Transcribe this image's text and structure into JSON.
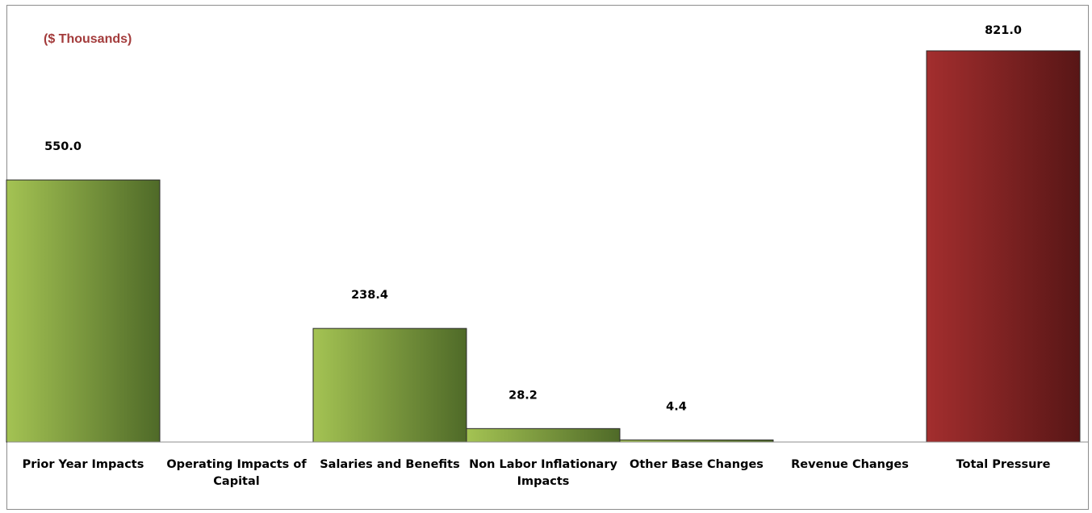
{
  "chart_data": {
    "type": "bar",
    "unit_label": "($ Thousands)",
    "categories": [
      "Prior Year Impacts",
      "Operating Impacts of Capital",
      "Salaries and Benefits",
      "Non Labor Inflationary Impacts",
      "Other Base Changes",
      "Revenue Changes",
      "Total Pressure"
    ],
    "values": [
      550.0,
      0,
      238.4,
      28.2,
      4.4,
      0,
      821.0
    ],
    "data_labels": [
      "550.0",
      "",
      "238.4",
      "28.2",
      "4.4",
      "",
      "821.0"
    ],
    "ylim": [
      0,
      821.0
    ],
    "grid": false,
    "legend": "none",
    "colors": {
      "component_light": "#a4c353",
      "component_dark": "#4f6a28",
      "total_light": "#a32e2e",
      "total_dark": "#581616",
      "unit_label": "#a33b3b"
    }
  }
}
